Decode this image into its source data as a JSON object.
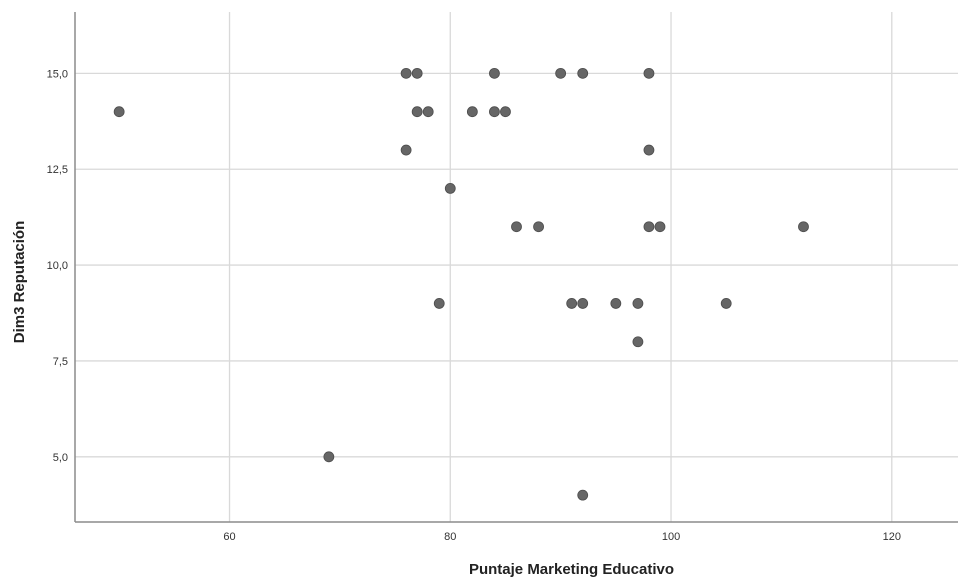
{
  "chart_data": {
    "type": "scatter",
    "xlabel": "Puntaje Marketing Educativo",
    "ylabel": "Dim3 Reputación",
    "xlim": [
      46,
      126
    ],
    "ylim": [
      3.3,
      16.6
    ],
    "grid": true,
    "x_ticks": [
      {
        "value": 60,
        "label": "60"
      },
      {
        "value": 80,
        "label": "80"
      },
      {
        "value": 100,
        "label": "100"
      },
      {
        "value": 120,
        "label": "120"
      }
    ],
    "y_ticks": [
      {
        "value": 5,
        "label": "5,0"
      },
      {
        "value": 7.5,
        "label": "7,5"
      },
      {
        "value": 10,
        "label": "10,0"
      },
      {
        "value": 12.5,
        "label": "12,5"
      },
      {
        "value": 15,
        "label": "15,0"
      }
    ],
    "marker_color": "#666666",
    "grid_color": "#d9d9d9",
    "axis_color": "#8c8c8c",
    "points": [
      {
        "x": 50,
        "y": 14
      },
      {
        "x": 69,
        "y": 5
      },
      {
        "x": 76,
        "y": 15
      },
      {
        "x": 77,
        "y": 15
      },
      {
        "x": 77,
        "y": 14
      },
      {
        "x": 78,
        "y": 14
      },
      {
        "x": 76,
        "y": 13
      },
      {
        "x": 79,
        "y": 9
      },
      {
        "x": 80,
        "y": 12
      },
      {
        "x": 82,
        "y": 14
      },
      {
        "x": 84,
        "y": 15
      },
      {
        "x": 84,
        "y": 14
      },
      {
        "x": 85,
        "y": 14
      },
      {
        "x": 86,
        "y": 11
      },
      {
        "x": 88,
        "y": 11
      },
      {
        "x": 90,
        "y": 15
      },
      {
        "x": 91,
        "y": 9
      },
      {
        "x": 92,
        "y": 15
      },
      {
        "x": 92,
        "y": 9
      },
      {
        "x": 92,
        "y": 4
      },
      {
        "x": 95,
        "y": 9
      },
      {
        "x": 97,
        "y": 9
      },
      {
        "x": 97,
        "y": 8
      },
      {
        "x": 98,
        "y": 15
      },
      {
        "x": 98,
        "y": 13
      },
      {
        "x": 98,
        "y": 11
      },
      {
        "x": 99,
        "y": 11
      },
      {
        "x": 105,
        "y": 9
      },
      {
        "x": 112,
        "y": 11
      }
    ]
  }
}
